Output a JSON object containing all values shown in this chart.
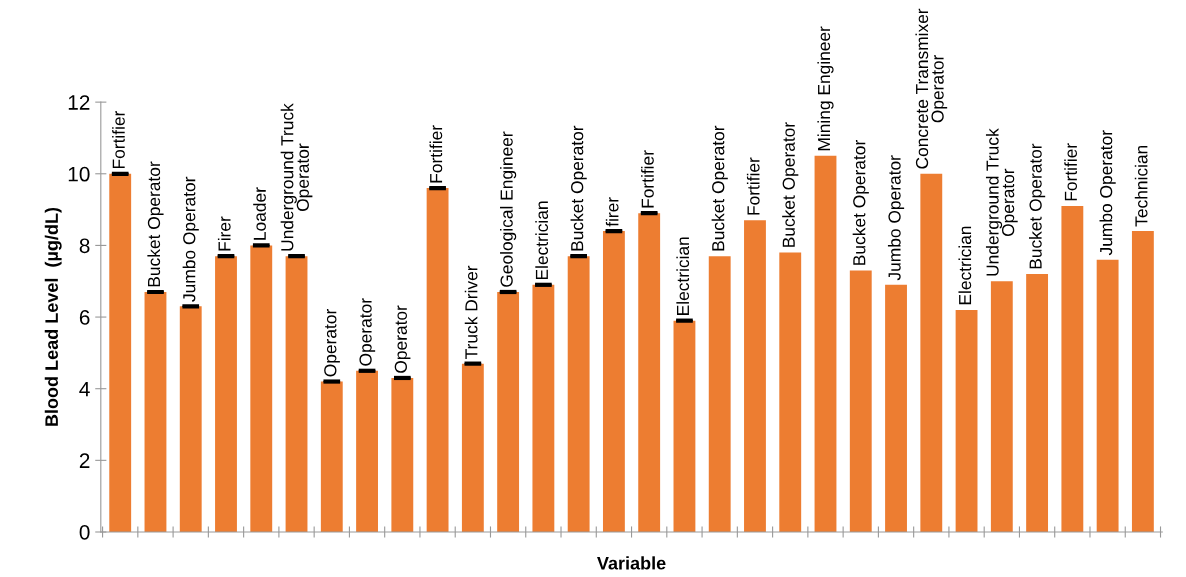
{
  "chart_data": {
    "type": "bar",
    "xlabel": "Variable",
    "ylabel": "Blood Lead Level  (µg/dL)",
    "color": "#ed7d31",
    "categories": [
      "Fortifier",
      "Bucket Operator",
      "Jumbo Operator",
      "Firer",
      "Loader",
      "Underground Truck\nOperator",
      "Operator",
      "Operator",
      "Operator",
      "Fortifier",
      "Truck Driver",
      "Geological Engineer",
      "Electrician",
      "Bucket Operator",
      "firer",
      "Fortifier",
      "Electrician",
      "Bucket Operator",
      "Fortifier",
      "Bucket Operator",
      "Mining Engineer",
      "Bucket Operator",
      "Jumbo Operator",
      "Concrete Transmixer\nOperator",
      "Electrician",
      "Underground Truck\nOperator",
      "Bucket Operator",
      "Fortifier",
      "Jumbo Operator",
      "Technician"
    ],
    "values": [
      10.0,
      6.7,
      6.3,
      7.7,
      8.0,
      7.7,
      4.2,
      4.5,
      4.3,
      9.6,
      4.7,
      6.7,
      6.9,
      7.7,
      8.4,
      8.9,
      5.9,
      7.7,
      8.7,
      7.8,
      10.5,
      7.3,
      6.9,
      10.0,
      6.2,
      7.0,
      7.2,
      9.1,
      7.6,
      8.4
    ],
    "errors": [
      0.02,
      0.02,
      0.02,
      0.02,
      0.02,
      0.02,
      0.02,
      0.02,
      0.02,
      0.02,
      0.02,
      0.02,
      0.02,
      0.02,
      0.02,
      0.02,
      0.02,
      null,
      null,
      null,
      null,
      null,
      null,
      null,
      null,
      null,
      null,
      null,
      null,
      null
    ],
    "ylim": [
      0,
      12
    ],
    "yticks": [
      0,
      2,
      4,
      6,
      8,
      10,
      12
    ],
    "grid": false,
    "legend": false
  }
}
